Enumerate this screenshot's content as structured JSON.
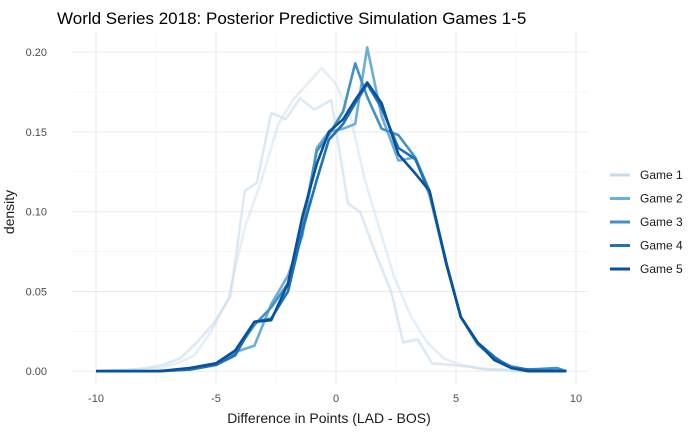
{
  "chart_data": {
    "type": "line",
    "title": "World Series 2018: Posterior Predictive Simulation Games 1-5",
    "xlabel": "Difference in Points (LAD - BOS)",
    "ylabel": "density",
    "xlim": [
      -11,
      10.5
    ],
    "ylim": [
      -0.008,
      0.212
    ],
    "x_ticks": [
      -10,
      -5,
      0,
      5,
      10
    ],
    "y_ticks": [
      0.0,
      0.05,
      0.1,
      0.15,
      0.2
    ],
    "x_tick_labels": [
      "-10",
      "-5",
      "0",
      "5",
      "10"
    ],
    "y_tick_labels": [
      "0.00",
      "0.05",
      "0.10",
      "0.15",
      "0.20"
    ],
    "grid": true,
    "legend_position": "right",
    "series": [
      {
        "name": "Game 1",
        "color": "#c6dbef",
        "opacity": 0.45,
        "x": [
          -10.0,
          -8.0,
          -7.3,
          -6.6,
          -5.9,
          -5.2,
          -4.5,
          -3.8,
          -3.1,
          -2.4,
          -1.8,
          -1.2,
          -0.6,
          0.0,
          0.6,
          1.2,
          1.8,
          2.4,
          3.1,
          3.8,
          4.5,
          5.2,
          5.9,
          6.6,
          7.3,
          8.0,
          9.6
        ],
        "values": [
          0.0,
          0.001,
          0.002,
          0.005,
          0.01,
          0.025,
          0.045,
          0.09,
          0.12,
          0.155,
          0.17,
          0.18,
          0.19,
          0.18,
          0.16,
          0.12,
          0.09,
          0.06,
          0.035,
          0.018,
          0.008,
          0.004,
          0.002,
          0.001,
          0.0005,
          0.0,
          0.0
        ]
      },
      {
        "name": "Game 1",
        "color": "#c6dbef",
        "opacity": 0.6,
        "x": [
          -10.0,
          -9.3,
          -8.6,
          -7.9,
          -7.2,
          -6.5,
          -5.8,
          -5.1,
          -4.4,
          -3.8,
          -3.3,
          -2.7,
          -2.1,
          -1.5,
          -0.9,
          -0.2,
          0.5,
          1.0,
          1.7,
          2.3,
          2.8,
          3.4,
          4.0,
          4.8,
          5.5,
          6.2,
          6.9,
          7.6,
          8.4,
          9.6
        ],
        "values": [
          0.0,
          0.0008,
          0.001,
          0.002,
          0.004,
          0.008,
          0.018,
          0.03,
          0.047,
          0.113,
          0.118,
          0.162,
          0.158,
          0.171,
          0.164,
          0.17,
          0.105,
          0.1,
          0.072,
          0.05,
          0.018,
          0.02,
          0.005,
          0.004,
          0.003,
          0.001,
          0.001,
          0.0,
          0.0,
          0.0
        ]
      },
      {
        "name": "Game 2",
        "color": "#6baed6",
        "opacity": 1,
        "x": [
          -10.0,
          -7.4,
          -6.1,
          -5.0,
          -4.2,
          -3.4,
          -2.7,
          -2.0,
          -1.4,
          -0.8,
          -0.3,
          0.3,
          0.8,
          1.3,
          1.9,
          2.6,
          3.3,
          3.9,
          4.6,
          5.2,
          5.9,
          6.6,
          7.3,
          8.0,
          9.6
        ],
        "values": [
          0.0,
          0.0,
          0.001,
          0.004,
          0.012,
          0.016,
          0.042,
          0.06,
          0.085,
          0.14,
          0.15,
          0.152,
          0.155,
          0.203,
          0.16,
          0.132,
          0.134,
          0.11,
          0.067,
          0.034,
          0.017,
          0.008,
          0.003,
          0.001,
          0.0
        ]
      },
      {
        "name": "Game 3",
        "color": "#4292c6",
        "opacity": 1,
        "x": [
          -10.0,
          -7.4,
          -6.1,
          -5.0,
          -4.2,
          -3.4,
          -2.7,
          -2.0,
          -1.4,
          -0.8,
          -0.3,
          0.3,
          0.8,
          1.3,
          1.9,
          2.6,
          3.3,
          3.9,
          4.6,
          5.2,
          5.9,
          6.6,
          7.3,
          8.0,
          9.2,
          9.6
        ],
        "values": [
          0.0,
          0.0,
          0.001,
          0.004,
          0.012,
          0.029,
          0.04,
          0.055,
          0.092,
          0.138,
          0.148,
          0.163,
          0.193,
          0.172,
          0.152,
          0.148,
          0.134,
          0.113,
          0.067,
          0.034,
          0.017,
          0.008,
          0.003,
          0.001,
          0.002,
          0.0
        ]
      },
      {
        "name": "Game 4",
        "color": "#2171b5",
        "opacity": 1,
        "x": [
          -10.0,
          -7.4,
          -6.1,
          -5.0,
          -4.2,
          -3.4,
          -2.7,
          -2.0,
          -1.4,
          -0.8,
          -0.3,
          0.3,
          0.8,
          1.3,
          1.9,
          2.6,
          3.3,
          3.9,
          4.6,
          5.2,
          5.9,
          6.6,
          7.3,
          8.0,
          9.6
        ],
        "values": [
          0.0,
          0.0,
          0.001,
          0.004,
          0.01,
          0.031,
          0.033,
          0.05,
          0.088,
          0.12,
          0.145,
          0.155,
          0.168,
          0.18,
          0.165,
          0.14,
          0.133,
          0.112,
          0.068,
          0.034,
          0.018,
          0.009,
          0.002,
          0.001,
          0.0
        ]
      },
      {
        "name": "Game 5",
        "color": "#08519c",
        "opacity": 1,
        "x": [
          -10.0,
          -7.4,
          -6.1,
          -5.0,
          -4.2,
          -3.4,
          -2.7,
          -2.0,
          -1.4,
          -0.8,
          -0.3,
          0.3,
          0.8,
          1.3,
          1.9,
          2.6,
          3.3,
          3.9,
          4.6,
          5.2,
          5.9,
          6.6,
          7.3,
          8.0,
          9.6
        ],
        "values": [
          0.0,
          0.0,
          0.002,
          0.005,
          0.013,
          0.031,
          0.032,
          0.055,
          0.097,
          0.13,
          0.15,
          0.158,
          0.17,
          0.181,
          0.168,
          0.136,
          0.124,
          0.113,
          0.067,
          0.034,
          0.018,
          0.007,
          0.002,
          0.0,
          0.0
        ]
      }
    ],
    "legend": [
      {
        "label": "Game 1",
        "color": "#c6dbef"
      },
      {
        "label": "Game 2",
        "color": "#6baed6"
      },
      {
        "label": "Game 3",
        "color": "#4292c6"
      },
      {
        "label": "Game 4",
        "color": "#2171b5"
      },
      {
        "label": "Game 5",
        "color": "#08519c"
      }
    ]
  }
}
